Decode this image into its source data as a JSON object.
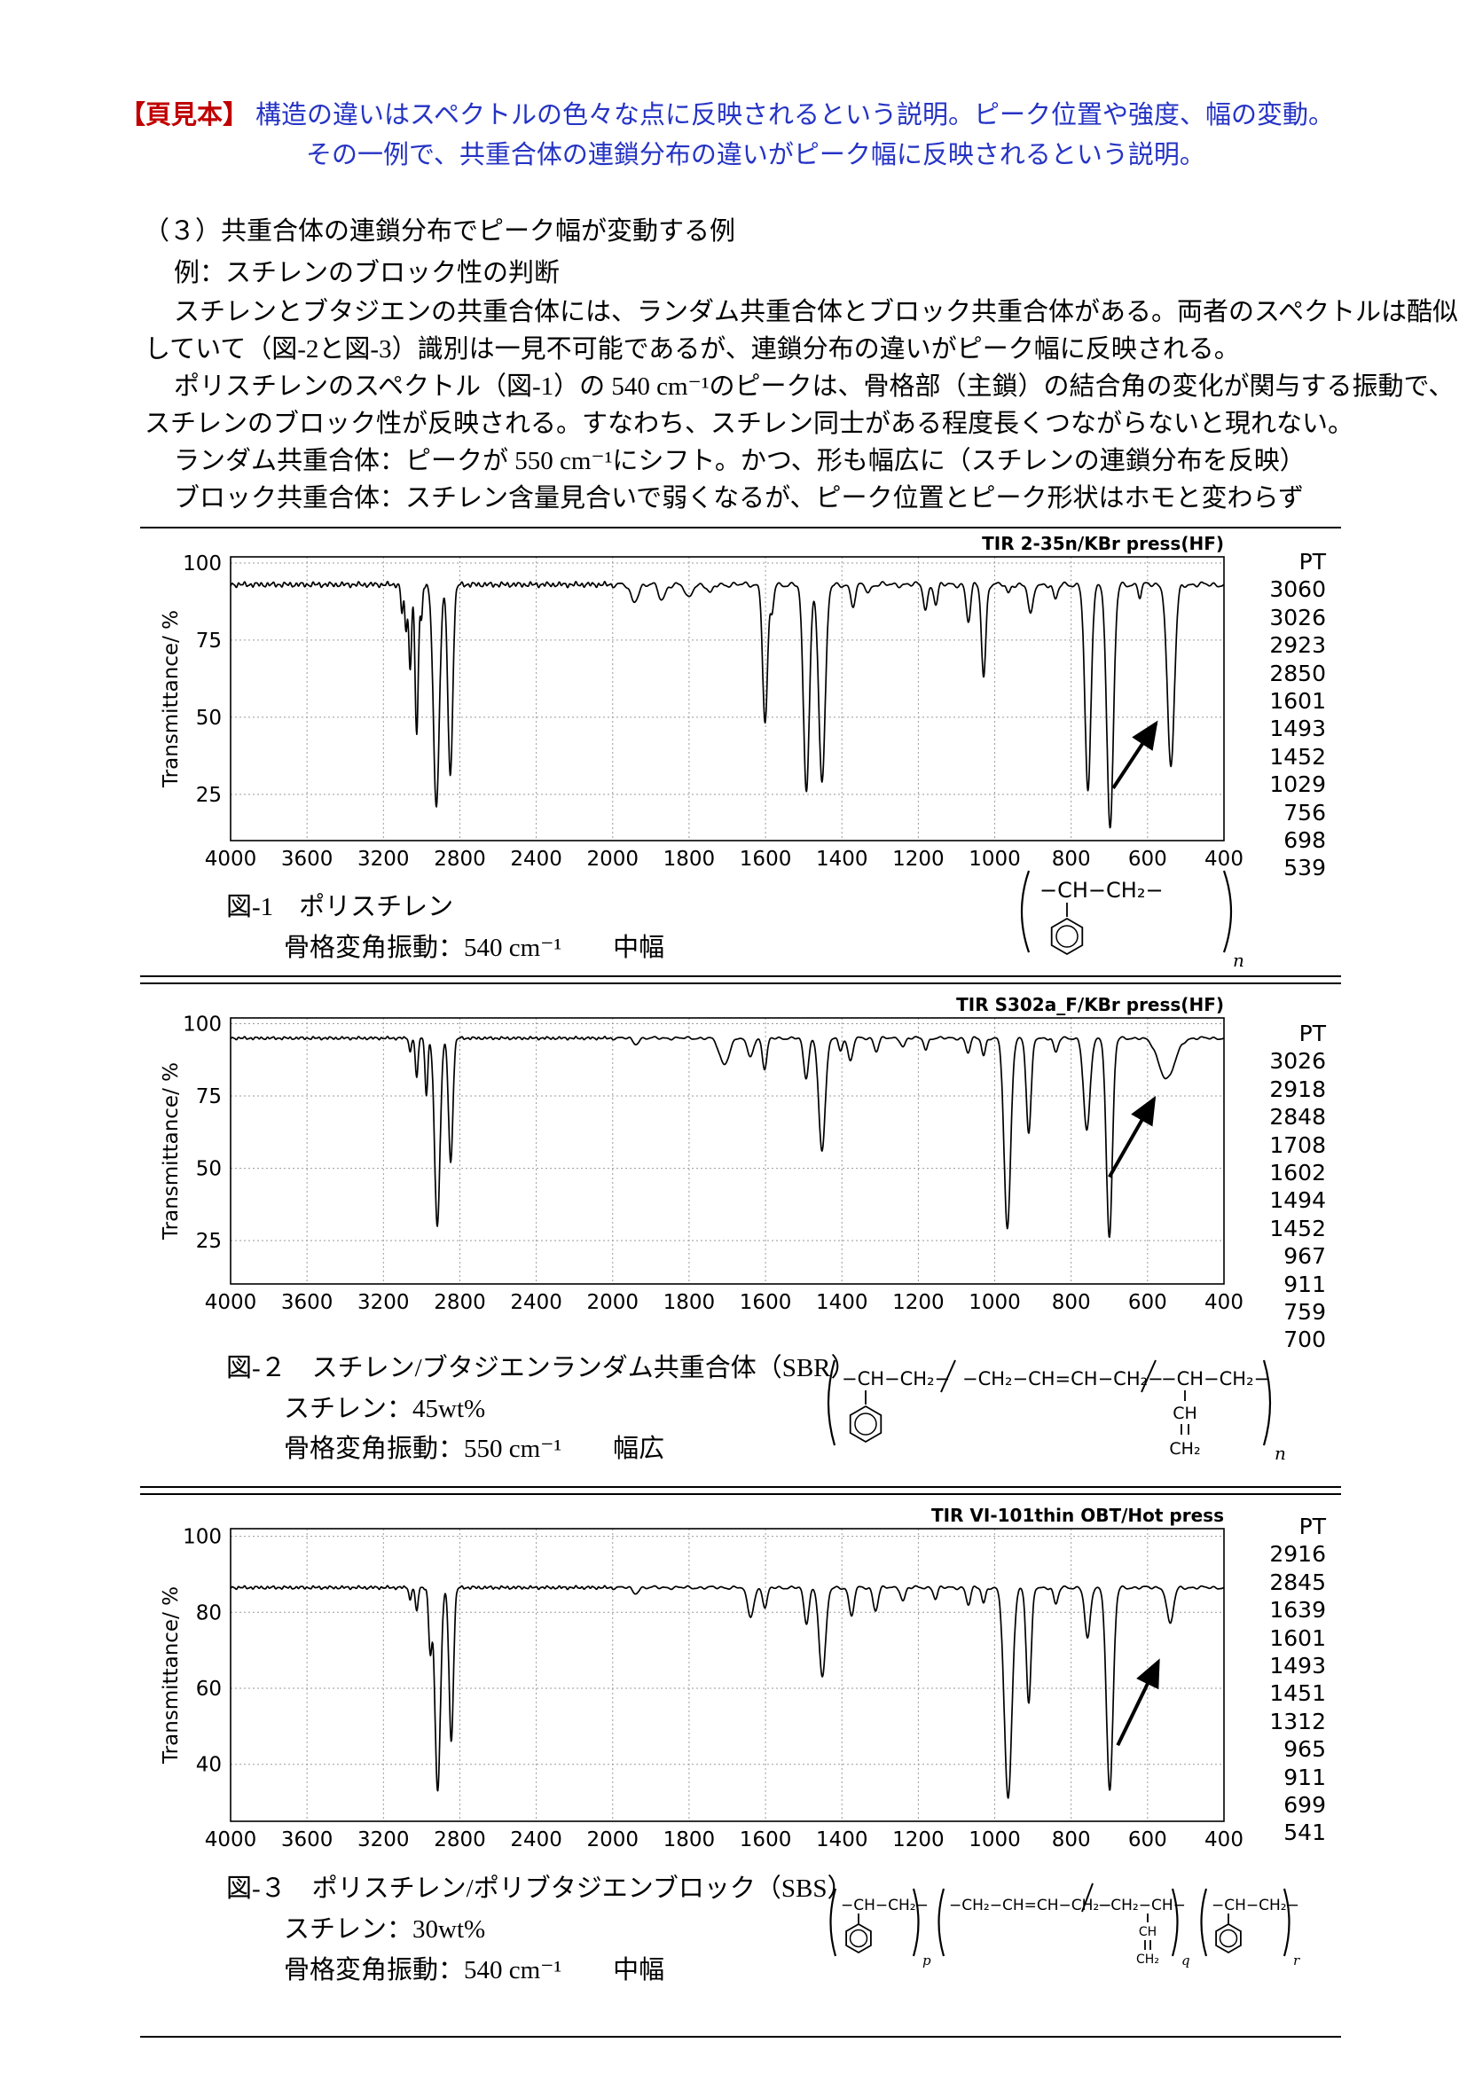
{
  "colors": {
    "accent_red": "#c00000",
    "accent_blue": "#2533c4"
  },
  "page": {
    "header": {
      "tag": "【頁見本】",
      "line1": "構造の違いはスペクトルの色々な点に反映されるという説明。ピーク位置や強度、幅の変動。",
      "line2": "その一例で、共重合体の連鎖分布の違いがピーク幅に反映されるという説明。"
    },
    "section_title": "（３）共重合体の連鎖分布でピーク幅が変動する例",
    "example_title": "例：スチレンのブロック性の判断",
    "paragraphs": [
      "スチレンとブタジエンの共重合体には、ランダム共重合体とブロック共重合体がある。両者のスペクトルは酷似",
      "していて（図-2と図-3）識別は一見不可能であるが、連鎖分布の違いがピーク幅に反映される。",
      "ポリスチレンのスペクトル（図-1）の 540 cm⁻¹のピークは、骨格部（主鎖）の結合角の変化が関与する振動で、",
      "スチレンのブロック性が反映される。すなわち、スチレン同士がある程度長くつながらないと現れない。",
      "ランダム共重合体：ピークが 550 cm⁻¹にシフト。かつ、形も幅広に（スチレンの連鎖分布を反映）",
      "ブロック共重合体：スチレン含量見合いで弱くなるが、ピーク位置とピーク形状はホモと変わらず"
    ]
  },
  "figures": [
    {
      "caption": "図-1　ポリスチレン",
      "vibration": "骨格変角振動：540 cm⁻¹　　中幅",
      "peak_header": "PT",
      "peak_list": [
        "3060",
        "3026",
        "2923",
        "2850",
        "1601",
        "1493",
        "1452",
        "1029",
        "756",
        "698",
        "539"
      ],
      "structure": {
        "unit": "−CH−CH₂−",
        "sub": "n"
      }
    },
    {
      "caption": "図-２　スチレン/ブタジエンランダム共重合体（SBR）",
      "styrene": "スチレン：45wt%",
      "vibration": "骨格変角振動：550 cm⁻¹　　幅広",
      "peak_header": "PT",
      "peak_list": [
        "3026",
        "2918",
        "2848",
        "1708",
        "1602",
        "1494",
        "1452",
        "967",
        "911",
        "759",
        "700"
      ],
      "structure": {
        "unit1": "−CH−CH₂−",
        "unit2": "−CH₂−CH=CH−CH₂−",
        "unit3": "−CH−CH₂−",
        "vinyl_ch": "CH",
        "vinyl_ch2": "CH₂",
        "sub": "n"
      }
    },
    {
      "caption": "図-３　ポリスチレン/ポリブタジエンブロック（SBS）",
      "styrene": "スチレン：30wt%",
      "vibration": "骨格変角振動：540 cm⁻¹　　中幅",
      "peak_header": "PT",
      "peak_list": [
        "2916",
        "2845",
        "1639",
        "1601",
        "1493",
        "1451",
        "1312",
        "965",
        "911",
        "699",
        "541"
      ],
      "structure": {
        "block1": "−CH−CH₂−",
        "block2a": "−CH₂−CH=CH−CH₂−",
        "block2b": "−CH₂−CH−",
        "block3": "−CH−CH₂−",
        "vinyl_ch": "CH",
        "vinyl_ch2": "CH₂",
        "sub1": "p",
        "sub2": "q",
        "sub3": "r"
      }
    }
  ],
  "chart_data": [
    {
      "type": "line",
      "title": "TIR 2-35n/KBr press(HF)",
      "ylabel": "Transmittance/ %",
      "yticks": [
        100,
        75,
        50,
        25
      ],
      "ylim": [
        10,
        102
      ],
      "xticks": [
        4000,
        3600,
        3200,
        2800,
        2400,
        2000,
        1800,
        1600,
        1400,
        1200,
        1000,
        800,
        600,
        400
      ],
      "x_scale_note": "wavenumber cm⁻¹, 400/div above 2000, 200/div below 2000",
      "grid": "dotted",
      "baseline": 93,
      "noise": 1.0,
      "peaks": [
        [
          3103,
          84,
          9
        ],
        [
          3082,
          78,
          9
        ],
        [
          3060,
          65,
          10
        ],
        [
          3026,
          44,
          12
        ],
        [
          3001,
          82,
          8
        ],
        [
          2923,
          21,
          22
        ],
        [
          2850,
          31,
          18
        ],
        [
          1944,
          87.5,
          14
        ],
        [
          1871,
          88,
          12
        ],
        [
          1802,
          88.5,
          12
        ],
        [
          1745,
          90,
          10
        ],
        [
          1601,
          48,
          9
        ],
        [
          1583,
          84,
          6
        ],
        [
          1493,
          26,
          11
        ],
        [
          1452,
          29,
          12
        ],
        [
          1371,
          86,
          9
        ],
        [
          1330,
          90.5,
          8
        ],
        [
          1181,
          85,
          8
        ],
        [
          1154,
          86.5,
          7
        ],
        [
          1069,
          81,
          8
        ],
        [
          1029,
          63,
          8
        ],
        [
          965,
          90,
          7
        ],
        [
          906,
          83,
          9
        ],
        [
          841,
          88,
          8
        ],
        [
          756,
          26,
          11
        ],
        [
          698,
          14,
          12
        ],
        [
          620,
          89,
          6
        ],
        [
          539,
          34,
          13
        ]
      ],
      "arrow": {
        "from": [
          690,
          27
        ],
        "to": [
          578,
          48
        ]
      }
    },
    {
      "type": "line",
      "title": "TIR S302a_F/KBr press(HF)",
      "ylabel": "Transmittance/ %",
      "yticks": [
        100,
        75,
        50,
        25
      ],
      "ylim": [
        10,
        102
      ],
      "xticks": [
        4000,
        3600,
        3200,
        2800,
        2400,
        2000,
        1800,
        1600,
        1400,
        1200,
        1000,
        800,
        600,
        400
      ],
      "x_scale_note": "wavenumber cm⁻¹, 400/div above 2000, 200/div below 2000",
      "grid": "dotted",
      "baseline": 95,
      "noise": 0.6,
      "peaks": [
        [
          3060,
          90,
          8
        ],
        [
          3026,
          81,
          10
        ],
        [
          2975,
          75,
          10
        ],
        [
          2918,
          30,
          20
        ],
        [
          2848,
          52,
          16
        ],
        [
          1940,
          93,
          10
        ],
        [
          1708,
          86,
          18
        ],
        [
          1640,
          89,
          12
        ],
        [
          1602,
          84,
          8
        ],
        [
          1494,
          81,
          9
        ],
        [
          1452,
          56,
          12
        ],
        [
          1404,
          91,
          7
        ],
        [
          1378,
          87,
          9
        ],
        [
          1310,
          90.5,
          8
        ],
        [
          1240,
          92,
          8
        ],
        [
          1180,
          91,
          7
        ],
        [
          1070,
          90,
          8
        ],
        [
          1029,
          89,
          7
        ],
        [
          967,
          29,
          12
        ],
        [
          911,
          62,
          9
        ],
        [
          840,
          90,
          8
        ],
        [
          759,
          63,
          12
        ],
        [
          700,
          26,
          11
        ],
        [
          550,
          81,
          30
        ]
      ],
      "arrow": {
        "from": [
          700,
          47
        ],
        "to": [
          583,
          74
        ]
      }
    },
    {
      "type": "line",
      "title": "TIR VI-101thin OBT/Hot press",
      "ylabel": "Transmittance/ %",
      "yticks": [
        100,
        80,
        60,
        40
      ],
      "ylim": [
        25,
        102
      ],
      "xticks": [
        4000,
        3600,
        3200,
        2800,
        2400,
        2000,
        1800,
        1600,
        1400,
        1200,
        1000,
        800,
        600,
        400
      ],
      "x_scale_note": "wavenumber cm⁻¹, 400/div above 2000, 200/div below 2000",
      "grid": "dotted",
      "baseline": 86.5,
      "noise": 0.5,
      "peaks": [
        [
          3060,
          83,
          8
        ],
        [
          3026,
          80,
          10
        ],
        [
          2955,
          70,
          12
        ],
        [
          2916,
          33,
          20
        ],
        [
          2845,
          46,
          16
        ],
        [
          1941,
          85,
          10
        ],
        [
          1639,
          79,
          12
        ],
        [
          1601,
          81,
          8
        ],
        [
          1493,
          77,
          9
        ],
        [
          1451,
          63,
          12
        ],
        [
          1375,
          79,
          9
        ],
        [
          1312,
          80.5,
          9
        ],
        [
          1240,
          83,
          8
        ],
        [
          1155,
          83.5,
          7
        ],
        [
          1069,
          82,
          8
        ],
        [
          1029,
          82.5,
          7
        ],
        [
          965,
          31,
          14
        ],
        [
          911,
          56,
          9
        ],
        [
          840,
          82,
          8
        ],
        [
          757,
          73,
          10
        ],
        [
          699,
          33,
          12
        ],
        [
          541,
          77,
          12
        ]
      ],
      "arrow": {
        "from": [
          678,
          45
        ],
        "to": [
          572,
          67
        ]
      }
    }
  ]
}
